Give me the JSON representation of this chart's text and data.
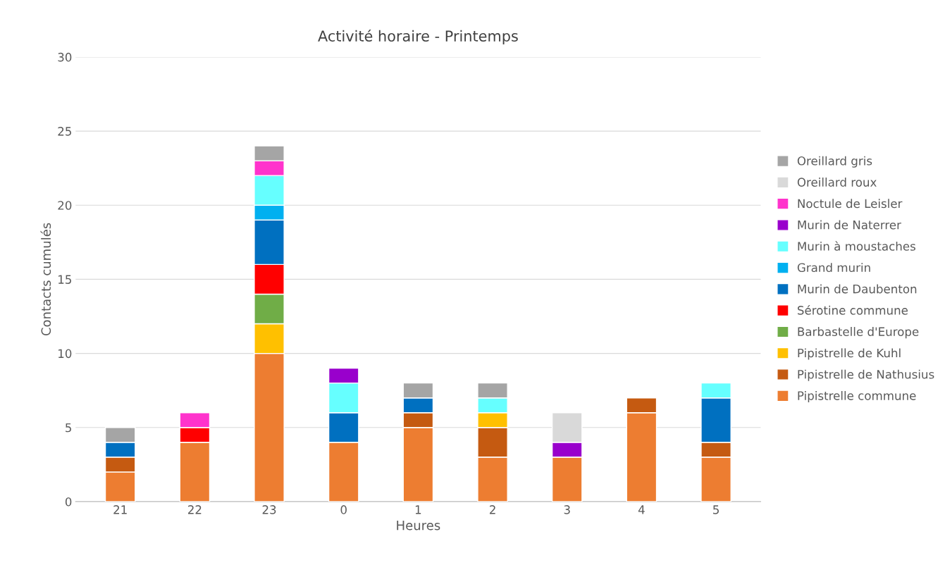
{
  "chart_data": {
    "type": "bar",
    "stacked": true,
    "title": "Activité horaire - Printemps",
    "xlabel": "Heures",
    "ylabel": "Contacts cumulés",
    "categories": [
      "21",
      "22",
      "23",
      "0",
      "1",
      "2",
      "3",
      "4",
      "5"
    ],
    "series": [
      {
        "name": "Pipistrelle commune",
        "color": "#ed7d31",
        "values": [
          2,
          4,
          10,
          4,
          5,
          3,
          3,
          6,
          3
        ]
      },
      {
        "name": "Pipistrelle de Nathusius",
        "color": "#c55a11",
        "values": [
          1,
          null,
          null,
          null,
          1,
          2,
          null,
          1,
          1
        ]
      },
      {
        "name": "Pipistrelle de Kuhl",
        "color": "#ffc000",
        "values": [
          null,
          null,
          2,
          null,
          null,
          1,
          null,
          null,
          null
        ]
      },
      {
        "name": "Barbastelle d'Europe",
        "color": "#70ad47",
        "values": [
          null,
          null,
          2,
          null,
          null,
          null,
          null,
          null,
          null
        ]
      },
      {
        "name": "Sérotine commune",
        "color": "#ff0000",
        "values": [
          null,
          1,
          2,
          null,
          null,
          null,
          null,
          null,
          null
        ]
      },
      {
        "name": "Murin de Daubenton",
        "color": "#0070c0",
        "values": [
          1,
          null,
          3,
          2,
          1,
          null,
          null,
          null,
          3
        ]
      },
      {
        "name": "Grand murin",
        "color": "#00b0f0",
        "values": [
          null,
          null,
          1,
          null,
          null,
          null,
          null,
          null,
          null
        ]
      },
      {
        "name": "Murin à moustaches",
        "color": "#66ffff",
        "values": [
          null,
          null,
          2,
          2,
          null,
          1,
          null,
          null,
          1
        ]
      },
      {
        "name": "Murin de Naterrer",
        "color": "#9900cc",
        "values": [
          null,
          null,
          null,
          1,
          null,
          null,
          1,
          null,
          null
        ]
      },
      {
        "name": "Noctule de Leisler",
        "color": "#ff33cc",
        "values": [
          null,
          1,
          1,
          null,
          null,
          null,
          null,
          null,
          null
        ]
      },
      {
        "name": "Oreillard roux",
        "color": "#d9d9d9",
        "values": [
          null,
          null,
          null,
          null,
          null,
          null,
          2,
          null,
          null
        ]
      },
      {
        "name": "Oreillard gris",
        "color": "#a5a5a5",
        "values": [
          1,
          null,
          1,
          null,
          1,
          1,
          null,
          null,
          null
        ]
      }
    ],
    "ylim": [
      0,
      30
    ],
    "yticks": [
      0,
      5,
      10,
      15,
      20,
      25,
      30
    ],
    "grid": "y",
    "legend": "right"
  }
}
